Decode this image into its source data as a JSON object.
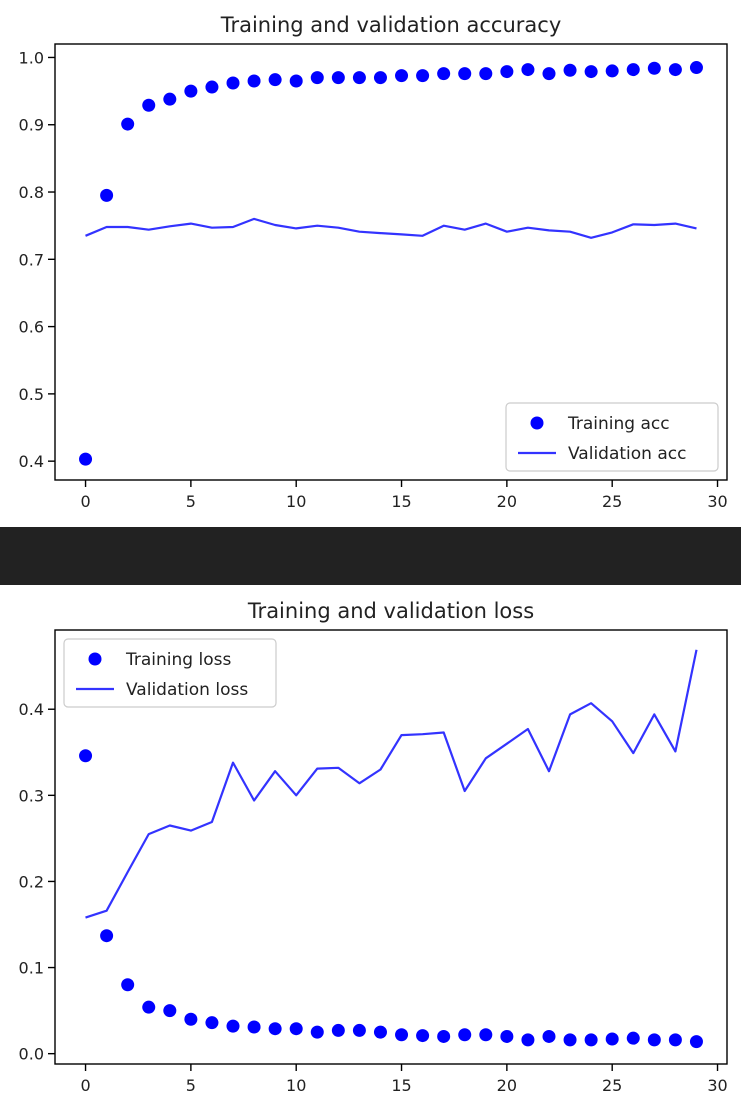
{
  "chart_data": [
    {
      "type": "scatter+line",
      "title": "Training and validation accuracy",
      "xlabel": "",
      "ylabel": "",
      "xlim": [
        -1.45,
        30.45
      ],
      "ylim": [
        0.372,
        1.02
      ],
      "xticks": [
        0,
        5,
        10,
        15,
        20,
        25,
        30
      ],
      "yticks": [
        0.4,
        0.5,
        0.6,
        0.7,
        0.8,
        0.9,
        1.0
      ],
      "ytick_labels": [
        "0.4",
        "0.5",
        "0.6",
        "0.7",
        "0.8",
        "0.9",
        "1.0"
      ],
      "grid": false,
      "legend_position": "lower-right",
      "series": [
        {
          "name": "Training acc",
          "style": "dots",
          "color": "#0000ff",
          "x": [
            0,
            1,
            2,
            3,
            4,
            5,
            6,
            7,
            8,
            9,
            10,
            11,
            12,
            13,
            14,
            15,
            16,
            17,
            18,
            19,
            20,
            21,
            22,
            23,
            24,
            25,
            26,
            27,
            28,
            29
          ],
          "y": [
            0.403,
            0.795,
            0.901,
            0.929,
            0.938,
            0.95,
            0.956,
            0.962,
            0.965,
            0.967,
            0.965,
            0.97,
            0.97,
            0.97,
            0.97,
            0.973,
            0.973,
            0.976,
            0.976,
            0.976,
            0.979,
            0.982,
            0.976,
            0.981,
            0.979,
            0.98,
            0.982,
            0.984,
            0.982,
            0.985
          ]
        },
        {
          "name": "Validation acc",
          "style": "line",
          "color": "#3333ff",
          "x": [
            0,
            1,
            2,
            3,
            4,
            5,
            6,
            7,
            8,
            9,
            10,
            11,
            12,
            13,
            14,
            15,
            16,
            17,
            18,
            19,
            20,
            21,
            22,
            23,
            24,
            25,
            26,
            27,
            28,
            29
          ],
          "y": [
            0.735,
            0.748,
            0.748,
            0.744,
            0.749,
            0.753,
            0.747,
            0.748,
            0.76,
            0.751,
            0.746,
            0.75,
            0.747,
            0.741,
            0.739,
            0.737,
            0.735,
            0.75,
            0.744,
            0.753,
            0.741,
            0.747,
            0.743,
            0.741,
            0.732,
            0.74,
            0.752,
            0.751,
            0.753,
            0.746
          ]
        }
      ]
    },
    {
      "type": "scatter+line",
      "title": "Training and validation loss",
      "xlabel": "",
      "ylabel": "",
      "xlim": [
        -1.45,
        30.45
      ],
      "ylim": [
        -0.012,
        0.492
      ],
      "xticks": [
        0,
        5,
        10,
        15,
        20,
        25,
        30
      ],
      "yticks": [
        0.0,
        0.1,
        0.2,
        0.3,
        0.4
      ],
      "ytick_labels": [
        "0.0",
        "0.1",
        "0.2",
        "0.3",
        "0.4"
      ],
      "grid": false,
      "legend_position": "upper-left",
      "series": [
        {
          "name": "Training loss",
          "style": "dots",
          "color": "#0000ff",
          "x": [
            0,
            1,
            2,
            3,
            4,
            5,
            6,
            7,
            8,
            9,
            10,
            11,
            12,
            13,
            14,
            15,
            16,
            17,
            18,
            19,
            20,
            21,
            22,
            23,
            24,
            25,
            26,
            27,
            28,
            29
          ],
          "y": [
            0.346,
            0.137,
            0.08,
            0.054,
            0.05,
            0.04,
            0.036,
            0.032,
            0.031,
            0.029,
            0.029,
            0.025,
            0.027,
            0.027,
            0.025,
            0.022,
            0.021,
            0.02,
            0.022,
            0.022,
            0.02,
            0.016,
            0.02,
            0.016,
            0.016,
            0.017,
            0.018,
            0.016,
            0.016,
            0.014
          ]
        },
        {
          "name": "Validation loss",
          "style": "line",
          "color": "#3333ff",
          "x": [
            0,
            1,
            2,
            3,
            4,
            5,
            6,
            7,
            8,
            9,
            10,
            11,
            12,
            13,
            14,
            15,
            16,
            17,
            18,
            19,
            20,
            21,
            22,
            23,
            24,
            25,
            26,
            27,
            28,
            29
          ],
          "y": [
            0.158,
            0.166,
            0.211,
            0.255,
            0.265,
            0.259,
            0.269,
            0.338,
            0.294,
            0.328,
            0.3,
            0.331,
            0.332,
            0.314,
            0.33,
            0.37,
            0.371,
            0.373,
            0.305,
            0.343,
            0.36,
            0.377,
            0.328,
            0.394,
            0.407,
            0.386,
            0.349,
            0.394,
            0.351,
            0.469
          ]
        }
      ]
    }
  ]
}
